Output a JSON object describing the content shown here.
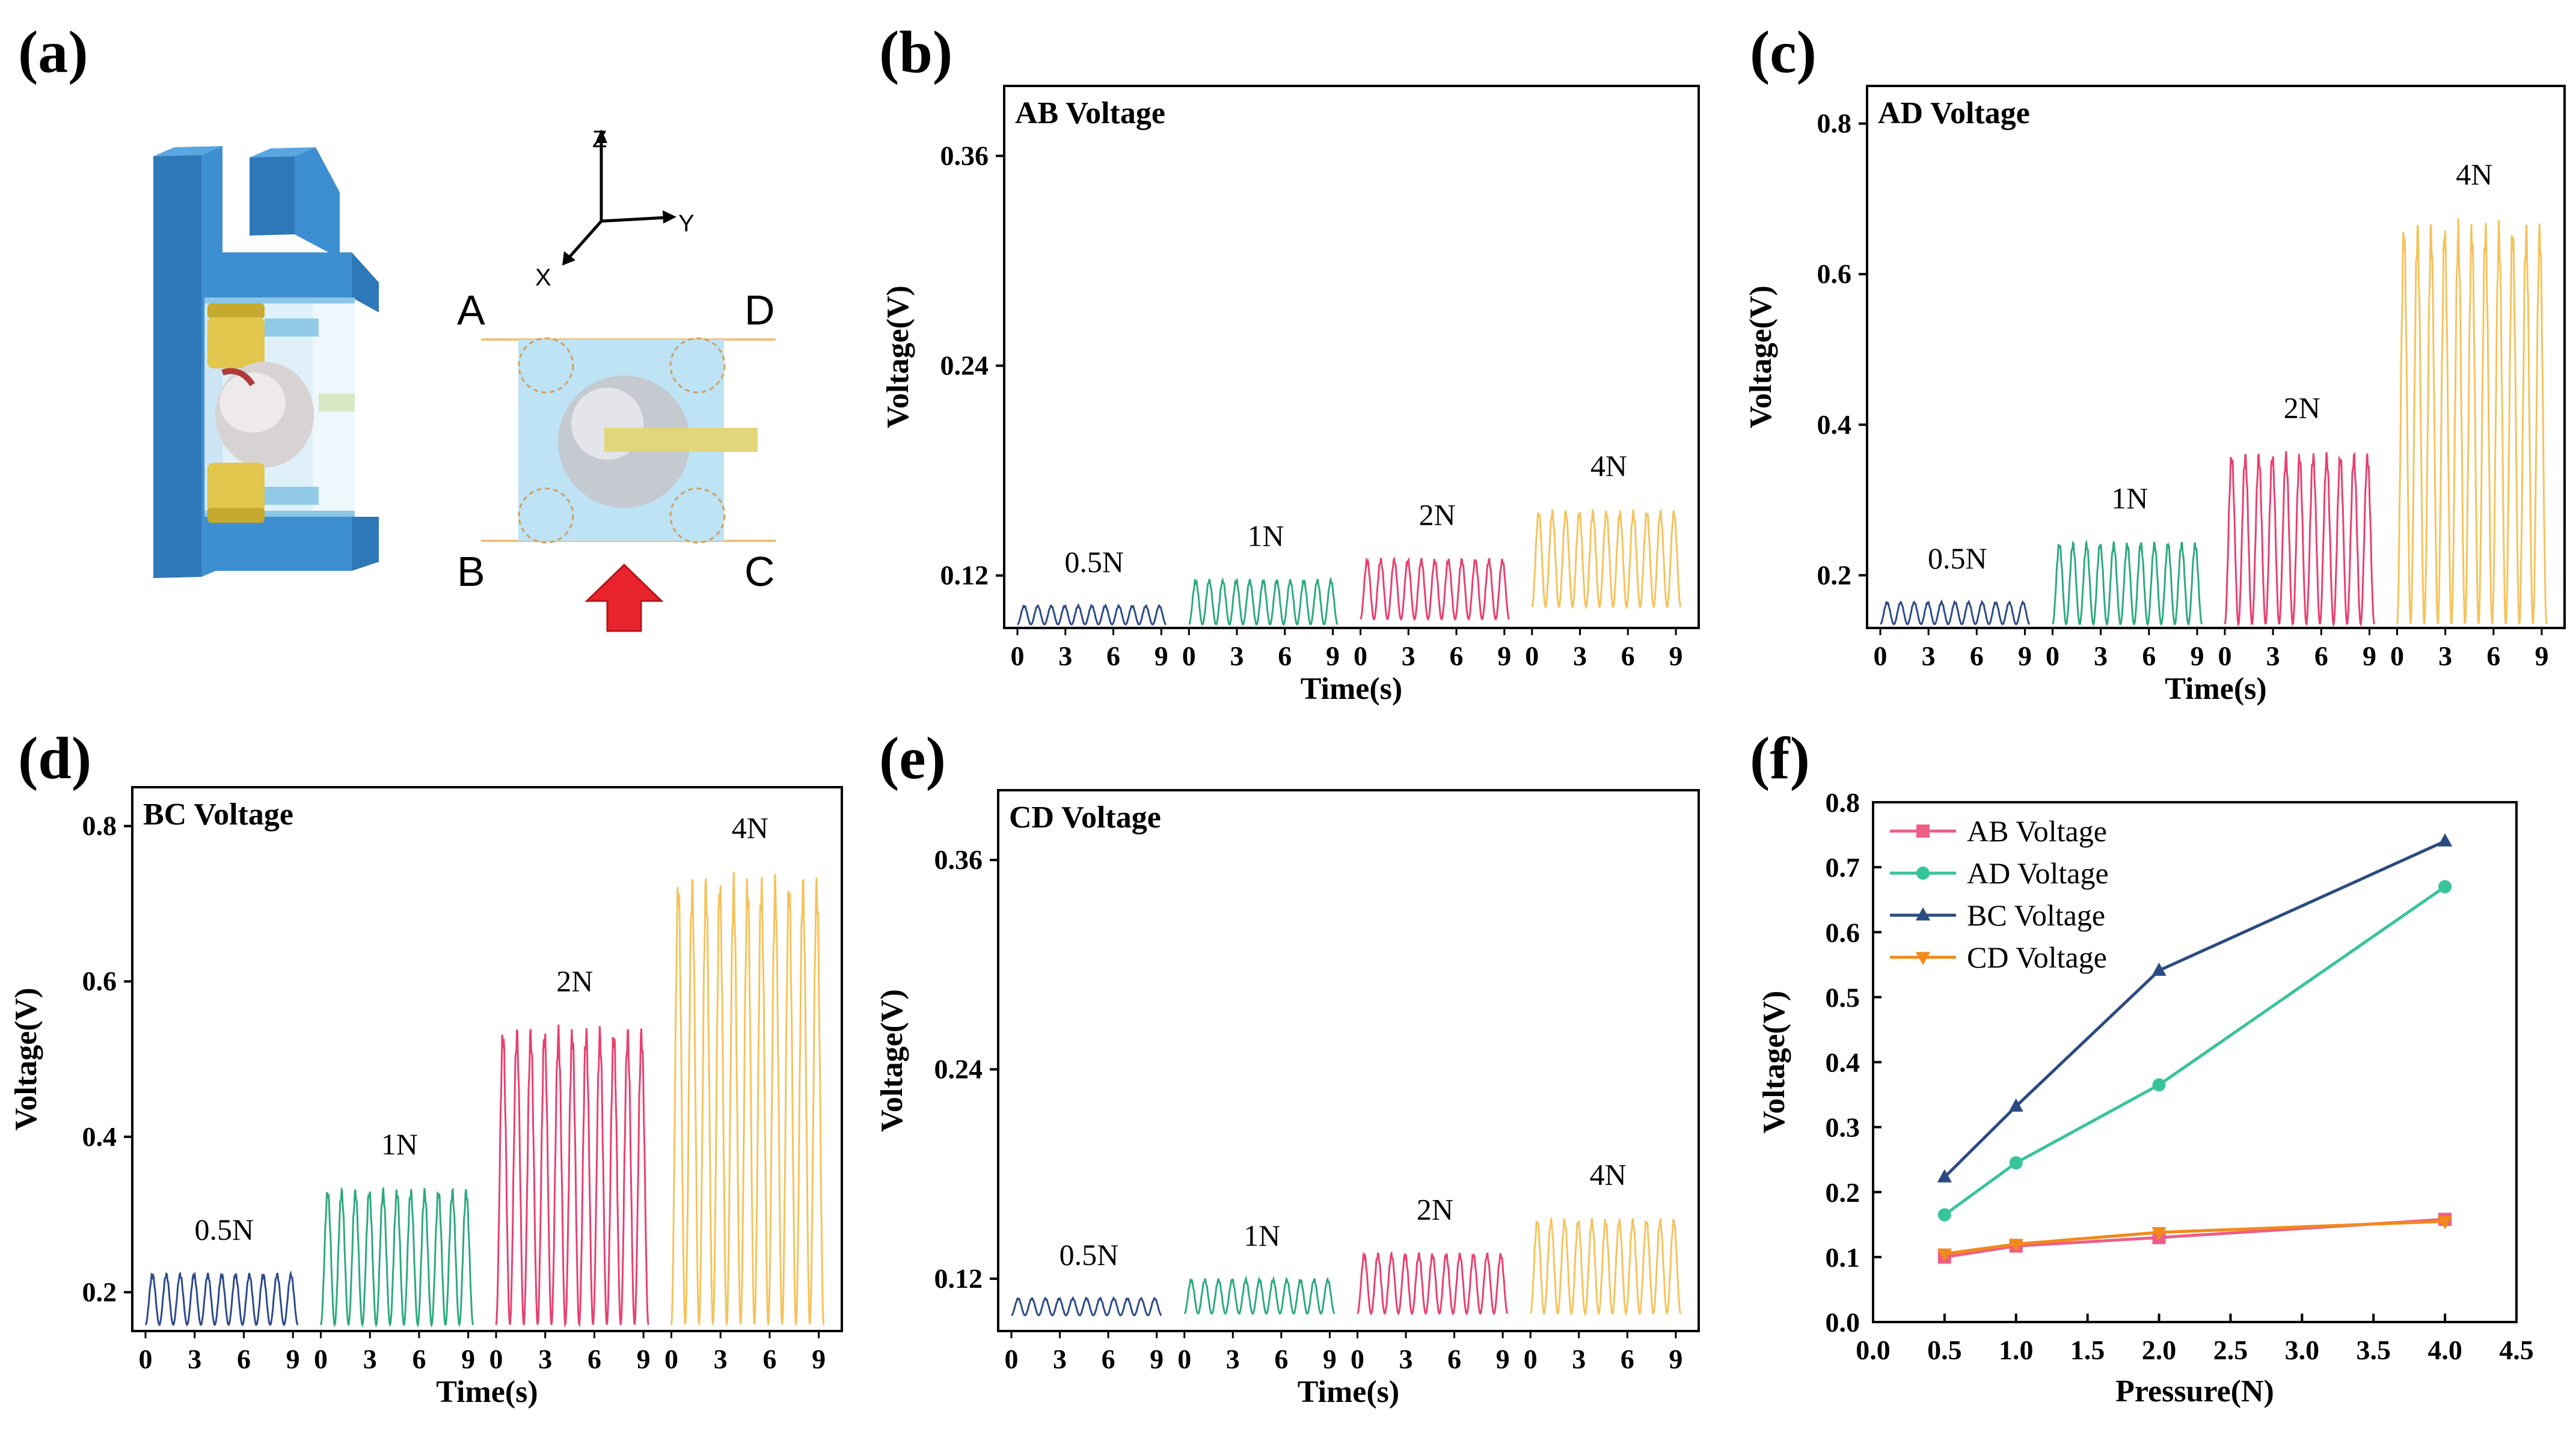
{
  "panel_letters": [
    "(a)",
    "(b)",
    "(c)",
    "(d)",
    "(e)",
    "(f)"
  ],
  "schematic": {
    "axis_labels": [
      "Z",
      "Y",
      "X"
    ],
    "corner_labels": [
      "A",
      "D",
      "B",
      "C"
    ]
  },
  "colors": {
    "f05": "#2d4a8a",
    "f1": "#2daa7e",
    "f2": "#e8406f",
    "f4": "#f5c35c",
    "ab": "#ee5d86",
    "ad": "#38c49a",
    "bc": "#2a4b80",
    "cd": "#f08a1a",
    "housing": "#3d8fd1",
    "cap": "#e2c64d",
    "block": "#bde3f5",
    "arrow": "#e8232c"
  },
  "chart_data": [
    {
      "type": "line",
      "panel": "b",
      "title": "AB  Voltage",
      "ylabel": "Voltage(V)",
      "xlabel": "Time(s)",
      "ylim": [
        0.09,
        0.4
      ],
      "yticks": [
        "0.36",
        "0.24",
        "0.12"
      ],
      "ytick_values": [
        0.36,
        0.24,
        0.12
      ],
      "xticks": [
        "0",
        "3",
        "6",
        "9"
      ],
      "xtick_values": [
        0,
        3,
        6,
        9
      ],
      "series": [
        {
          "label": "0.5N",
          "min": 0.092,
          "max": 0.103
        },
        {
          "label": "1N",
          "min": 0.092,
          "max": 0.118
        },
        {
          "label": "2N",
          "min": 0.095,
          "max": 0.13
        },
        {
          "label": "4N",
          "min": 0.102,
          "max": 0.158
        }
      ]
    },
    {
      "type": "line",
      "panel": "c",
      "title": "AD Voltage",
      "ylabel": "Voltage(V)",
      "xlabel": "Time(s)",
      "ylim": [
        0.13,
        0.85
      ],
      "yticks": [
        "0.8",
        "0.6",
        "0.4",
        "0.2"
      ],
      "ytick_values": [
        0.8,
        0.6,
        0.4,
        0.2
      ],
      "xticks": [
        "0",
        "3",
        "6",
        "9"
      ],
      "xtick_values": [
        0,
        3,
        6,
        9
      ],
      "series": [
        {
          "label": "0.5N",
          "min": 0.135,
          "max": 0.165
        },
        {
          "label": "1N",
          "min": 0.135,
          "max": 0.245
        },
        {
          "label": "2N",
          "min": 0.135,
          "max": 0.365
        },
        {
          "label": "4N",
          "min": 0.135,
          "max": 0.675
        }
      ]
    },
    {
      "type": "line",
      "panel": "d",
      "title": "BC Voltage",
      "ylabel": "Voltage(V)",
      "xlabel": "Time(s)",
      "ylim": [
        0.15,
        0.85
      ],
      "yticks": [
        "0.8",
        "0.6",
        "0.4",
        "0.2"
      ],
      "ytick_values": [
        0.8,
        0.6,
        0.4,
        0.2
      ],
      "xticks": [
        "0",
        "3",
        "6",
        "9"
      ],
      "xtick_values": [
        0,
        3,
        6,
        9
      ],
      "series": [
        {
          "label": "0.5N",
          "min": 0.158,
          "max": 0.225
        },
        {
          "label": "1N",
          "min": 0.158,
          "max": 0.335
        },
        {
          "label": "2N",
          "min": 0.158,
          "max": 0.545
        },
        {
          "label": "4N",
          "min": 0.158,
          "max": 0.742
        }
      ]
    },
    {
      "type": "line",
      "panel": "e",
      "title": "CD  Voltage",
      "ylabel": "Voltage(V)",
      "xlabel": "Time(s)",
      "ylim": [
        0.09,
        0.4
      ],
      "yticks": [
        "0.36",
        "0.24",
        "0.12"
      ],
      "ytick_values": [
        0.36,
        0.24,
        0.12
      ],
      "xticks": [
        "0",
        "3",
        "6",
        "9"
      ],
      "xtick_values": [
        0,
        3,
        6,
        9
      ],
      "series": [
        {
          "label": "0.5N",
          "min": 0.099,
          "max": 0.109
        },
        {
          "label": "1N",
          "min": 0.1,
          "max": 0.12
        },
        {
          "label": "2N",
          "min": 0.1,
          "max": 0.135
        },
        {
          "label": "4N",
          "min": 0.1,
          "max": 0.155
        }
      ]
    },
    {
      "type": "line",
      "panel": "f",
      "title": "",
      "xlabel": "Pressure(N)",
      "ylabel": "Voltage(V)",
      "xlim": [
        0,
        4.5
      ],
      "ylim": [
        0,
        0.8
      ],
      "xticks": [
        "0.0",
        "0.5",
        "1.0",
        "1.5",
        "2.0",
        "2.5",
        "3.0",
        "3.5",
        "4.0",
        "4.5"
      ],
      "xtick_values": [
        0,
        0.5,
        1,
        1.5,
        2,
        2.5,
        3,
        3.5,
        4,
        4.5
      ],
      "yticks": [
        "0.0",
        "0.1",
        "0.2",
        "0.3",
        "0.4",
        "0.5",
        "0.6",
        "0.7",
        "0.8"
      ],
      "ytick_values": [
        0,
        0.1,
        0.2,
        0.3,
        0.4,
        0.5,
        0.6,
        0.7,
        0.8
      ],
      "x": [
        0.5,
        1,
        2,
        4
      ],
      "legend_position": "top-left",
      "series": [
        {
          "name": "AB Voltage",
          "marker": "square",
          "values": [
            0.1,
            0.117,
            0.13,
            0.158
          ]
        },
        {
          "name": "AD Voltage",
          "marker": "circle",
          "values": [
            0.165,
            0.245,
            0.365,
            0.67
          ]
        },
        {
          "name": "BC Voltage",
          "marker": "triangle-up",
          "values": [
            0.223,
            0.332,
            0.541,
            0.74
          ]
        },
        {
          "name": "CD Voltage",
          "marker": "triangle-down",
          "values": [
            0.105,
            0.12,
            0.138,
            0.155
          ]
        }
      ]
    }
  ]
}
